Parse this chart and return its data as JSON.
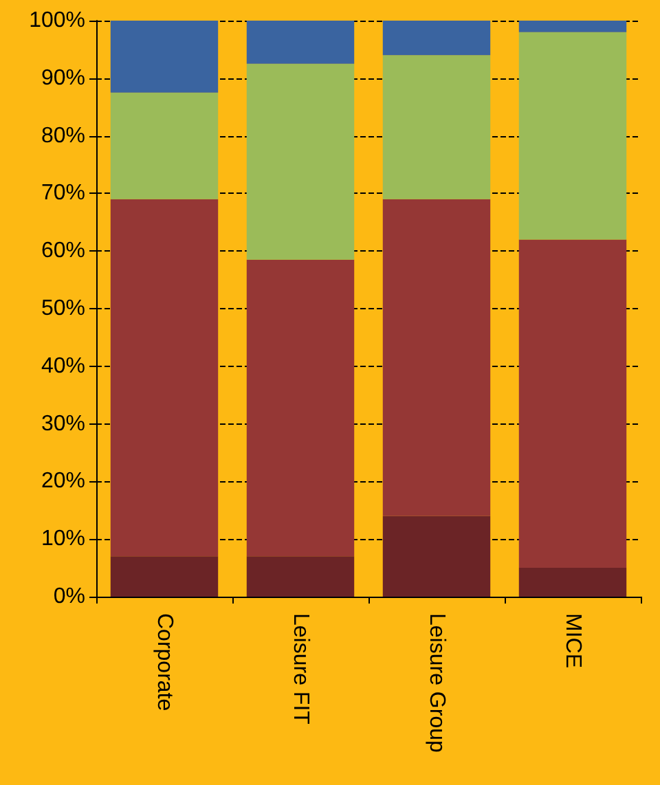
{
  "chart_data": {
    "type": "bar",
    "stacked": true,
    "categories": [
      "Corporate",
      "Leisure FIT",
      "Leisure Group",
      "MICE"
    ],
    "series": [
      {
        "color": "#6b2426",
        "values": [
          7,
          7,
          14,
          5
        ]
      },
      {
        "color": "#953735",
        "values": [
          62,
          51.5,
          55,
          57
        ]
      },
      {
        "color": "#9bbb59",
        "values": [
          18.5,
          34,
          25,
          36
        ]
      },
      {
        "color": "#3a64a0",
        "values": [
          12.5,
          7.5,
          6,
          2
        ]
      }
    ],
    "ylim": [
      0,
      100
    ],
    "yticks": [
      {
        "value": 0,
        "label": "0%"
      },
      {
        "value": 10,
        "label": "10%"
      },
      {
        "value": 20,
        "label": "20%"
      },
      {
        "value": 30,
        "label": "30%"
      },
      {
        "value": 40,
        "label": "40%"
      },
      {
        "value": 50,
        "label": "50%"
      },
      {
        "value": 60,
        "label": "60%"
      },
      {
        "value": 70,
        "label": "70%"
      },
      {
        "value": 80,
        "label": "80%"
      },
      {
        "value": 90,
        "label": "90%"
      },
      {
        "value": 100,
        "label": "100%"
      }
    ],
    "grid": "y"
  }
}
